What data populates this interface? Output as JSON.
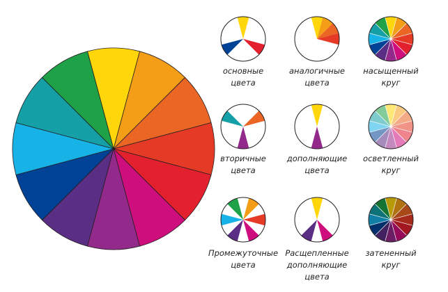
{
  "palette": {
    "yellow": "#FFD60A",
    "yellow_orange": "#F49E17",
    "orange": "#EB6524",
    "red_orange": "#E53A25",
    "red": "#E3202E",
    "red_violet": "#CF0E7D",
    "violet": "#93298B",
    "blue_violet": "#5B2E86",
    "blue": "#004295",
    "blue_green": "#17B2E6",
    "green_blue": "#14A0A6",
    "green": "#1FA147"
  },
  "wheel_order": [
    "yellow",
    "yellow_orange",
    "orange",
    "red_orange",
    "red",
    "red_violet",
    "violet",
    "blue_violet",
    "blue",
    "blue_green",
    "green_blue",
    "green"
  ],
  "schemes": [
    {
      "id": "primary",
      "label_lines": [
        "основные",
        "цвета"
      ],
      "mode": "subset",
      "segments": [
        0,
        4,
        8
      ]
    },
    {
      "id": "analogous",
      "label_lines": [
        "аналогичные",
        "цвета"
      ],
      "mode": "subset",
      "segments": [
        0,
        1,
        2,
        3
      ]
    },
    {
      "id": "saturated",
      "label_lines": [
        "насыщенный",
        "круг"
      ],
      "mode": "full"
    },
    {
      "id": "secondary",
      "label_lines": [
        "вторичные",
        "цвета"
      ],
      "mode": "subset",
      "segments": [
        2,
        6,
        10
      ]
    },
    {
      "id": "complementary",
      "label_lines": [
        "дополняющие",
        "цвета"
      ],
      "mode": "subset",
      "segments": [
        0,
        6
      ]
    },
    {
      "id": "tint",
      "label_lines": [
        "осветленный",
        "круг"
      ],
      "mode": "tint"
    },
    {
      "id": "tertiary",
      "label_lines": [
        "Промежуточные",
        "цвета"
      ],
      "mode": "subset",
      "segments": [
        1,
        3,
        5,
        7,
        9,
        11
      ]
    },
    {
      "id": "split_complementary",
      "label_lines": [
        "Расщепленные",
        "дополняющие",
        "цвета"
      ],
      "mode": "subset",
      "segments": [
        0,
        5,
        7
      ]
    },
    {
      "id": "shade",
      "label_lines": [
        "затененный",
        "круг"
      ],
      "mode": "shade"
    }
  ]
}
